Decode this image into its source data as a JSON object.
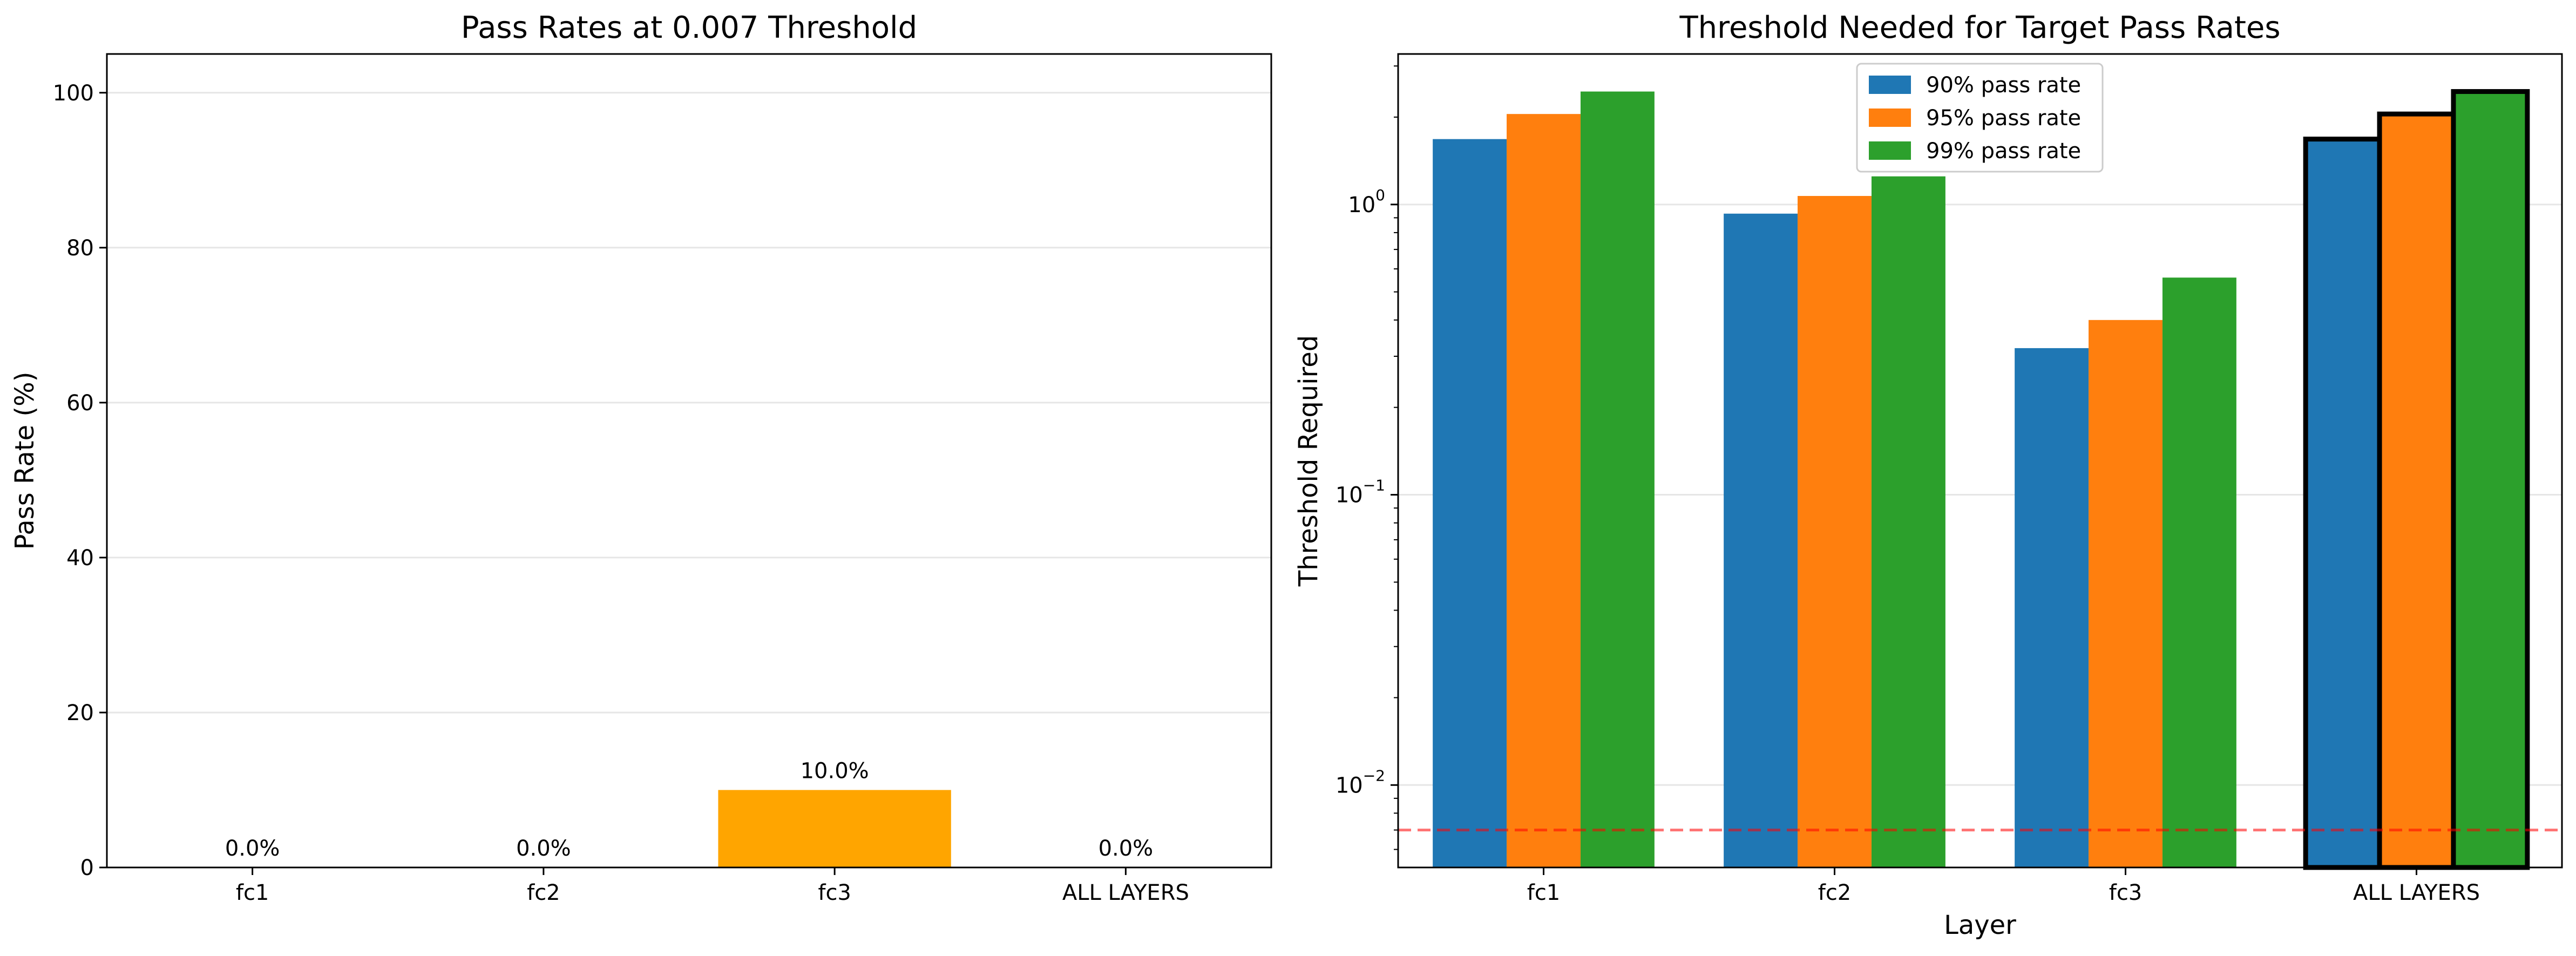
{
  "chart_data": [
    {
      "type": "bar",
      "title": "Pass Rates at 0.007 Threshold",
      "xlabel": "",
      "ylabel": "Pass Rate (%)",
      "ylim": [
        0,
        105
      ],
      "yticks": [
        0,
        20,
        40,
        60,
        80,
        100
      ],
      "grid": true,
      "categories": [
        "fc1",
        "fc2",
        "fc3",
        "ALL LAYERS"
      ],
      "values": [
        0.0,
        0.0,
        10.0,
        0.0
      ],
      "data_labels": [
        "0.0%",
        "0.0%",
        "10.0%",
        "0.0%"
      ],
      "bar_color": "#ffa500"
    },
    {
      "type": "bar",
      "title": "Threshold Needed for Target Pass Rates",
      "xlabel": "Layer",
      "ylabel": "Threshold Required",
      "yscale": "log",
      "ylim": [
        0.0052,
        3.3
      ],
      "yticks": [
        0.01,
        0.1,
        1
      ],
      "grid": true,
      "legend": "top-center",
      "categories": [
        "fc1",
        "fc2",
        "fc3",
        "ALL LAYERS"
      ],
      "highlight_category": "ALL LAYERS",
      "reference_line": {
        "value": 0.007,
        "color": "#ff0000"
      },
      "series": [
        {
          "name": "90% pass rate",
          "color": "#1f77b4",
          "values": [
            1.68,
            0.93,
            0.32,
            1.68
          ]
        },
        {
          "name": "95% pass rate",
          "color": "#ff7f0e",
          "values": [
            2.05,
            1.07,
            0.4,
            2.05
          ]
        },
        {
          "name": "99% pass rate",
          "color": "#2ca02c",
          "values": [
            2.45,
            1.25,
            0.56,
            2.45
          ]
        }
      ]
    }
  ]
}
